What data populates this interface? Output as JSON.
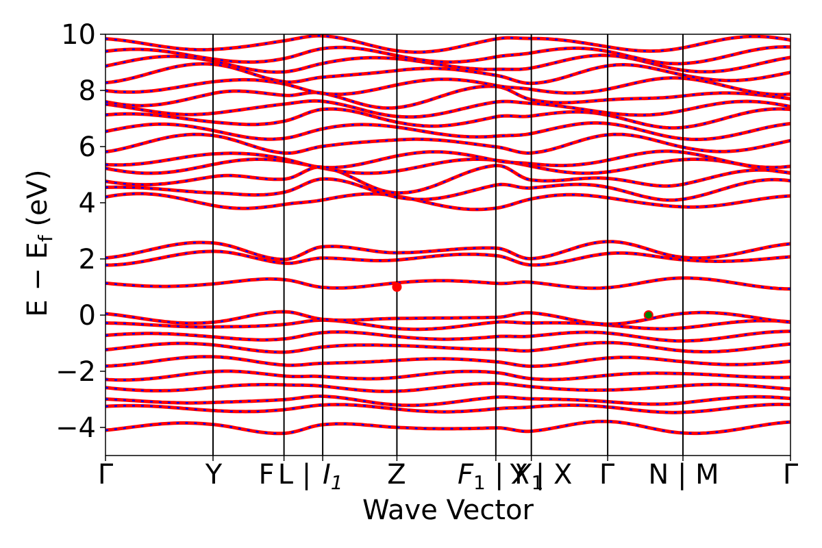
{
  "chart_data": {
    "type": "line",
    "title": "",
    "xlabel": "Wave Vector",
    "ylabel": "E − E_f (eV)",
    "ylabel_parts": {
      "main": "E − E",
      "sub": "f",
      "unit": " (eV)"
    },
    "ylim": [
      -5,
      10
    ],
    "yticks": [
      -4,
      -2,
      0,
      2,
      4,
      6,
      8,
      10
    ],
    "ytick_labels": [
      "−4",
      "−2",
      "0",
      "2",
      "4",
      "6",
      "8",
      "10"
    ],
    "grid": false,
    "legend": "none",
    "colors": {
      "band_solid": "#ff0000",
      "band_dashed": "#0000ff",
      "vbm_marker": "#008000",
      "cbm_marker": "#ff0000",
      "kpath_line": "#000000"
    },
    "kpath": [
      {
        "label": "Γ",
        "x": 0.0
      },
      {
        "label": "Y",
        "x": 1.0
      },
      {
        "label": "F | L",
        "x": 1.66
      },
      {
        "label": "I | I1",
        "x": 2.02
      },
      {
        "label": "Z",
        "x": 2.71
      },
      {
        "label": "F1 | X1",
        "x": 3.63
      },
      {
        "label": "Y | X",
        "x": 3.96
      },
      {
        "label": "Γ",
        "x": 4.67
      },
      {
        "label": "N | M",
        "x": 5.37
      },
      {
        "label": "Γ",
        "x": 6.37
      }
    ],
    "kpath_display_labels": [
      "Γ",
      "Y",
      "F",
      "L |",
      "Z",
      "X",
      "Y | X",
      "Γ",
      "N | M",
      "Γ"
    ],
    "kpath_i1_label": {
      "main": "I",
      "sub": "1",
      "sep": "| "
    },
    "kpath_f1_label": {
      "main": "F",
      "sub": "1"
    },
    "kpath_x1_label": {
      "main": "| X",
      "sub": "1"
    },
    "markers": [
      {
        "name": "CBM",
        "x": 2.71,
        "y": 1.0,
        "color": "#ff0000"
      },
      {
        "name": "VBM",
        "x": 5.05,
        "y": 0.0,
        "color": "#008000"
      }
    ],
    "bands": [
      {
        "segment": "Γ-Y",
        "values_at_nodes": [
          -4.1,
          -3.9
        ]
      },
      {
        "segment": "Γ-Y",
        "values_at_nodes": [
          -3.35,
          -3.3
        ]
      },
      {
        "segment": "Γ-Y",
        "values_at_nodes": [
          -3.1,
          -3.0
        ]
      },
      {
        "segment": "Γ-Y",
        "values_at_nodes": [
          -2.6,
          -2.55
        ]
      },
      {
        "segment": "Γ-Y",
        "values_at_nodes": [
          -2.2,
          -2.1
        ]
      },
      {
        "segment": "Γ-Y",
        "values_at_nodes": [
          -1.7,
          -1.6
        ]
      },
      {
        "segment": "Γ-Y",
        "values_at_nodes": [
          -1.2,
          -1.1
        ]
      },
      {
        "segment": "Γ-Y",
        "values_at_nodes": [
          -0.8,
          -0.7
        ]
      },
      {
        "segment": "Γ-Y",
        "values_at_nodes": [
          -0.4,
          -0.3
        ]
      },
      {
        "segment": "Γ-Y",
        "values_at_nodes": [
          0.0,
          -0.2
        ]
      },
      {
        "segment": "Γ-Y",
        "values_at_nodes": [
          1.2,
          1.05
        ]
      },
      {
        "segment": "Γ-Y",
        "values_at_nodes": [
          1.9,
          2.15
        ]
      },
      {
        "segment": "Γ-Y",
        "values_at_nodes": [
          2.1,
          2.5
        ]
      },
      {
        "segment": "Γ-Y",
        "values_at_nodes": [
          4.1,
          4.0
        ]
      },
      {
        "segment": "Γ-Y",
        "values_at_nodes": [
          4.3,
          4.6
        ]
      },
      {
        "segment": "Γ-Y",
        "values_at_nodes": [
          4.6,
          5.1
        ]
      },
      {
        "segment": "Γ-Y",
        "values_at_nodes": [
          5.3,
          5.3
        ]
      },
      {
        "segment": "Γ-Y",
        "values_at_nodes": [
          5.6,
          5.5
        ]
      },
      {
        "segment": "Γ-Y",
        "values_at_nodes": [
          6.0,
          6.2
        ]
      },
      {
        "segment": "Γ-Y",
        "values_at_nodes": [
          6.5,
          6.6
        ]
      },
      {
        "segment": "Γ-Y",
        "values_at_nodes": [
          6.9,
          7.1
        ]
      },
      {
        "segment": "Γ-Y",
        "values_at_nodes": [
          7.3,
          7.4
        ]
      },
      {
        "segment": "Γ-Y",
        "values_at_nodes": [
          7.6,
          7.9
        ]
      },
      {
        "segment": "Γ-Y",
        "values_at_nodes": [
          8.2,
          8.1
        ]
      },
      {
        "segment": "Γ-Y",
        "values_at_nodes": [
          8.5,
          8.7
        ]
      },
      {
        "segment": "Γ-Y",
        "values_at_nodes": [
          8.9,
          9.0
        ]
      },
      {
        "segment": "Γ-Y",
        "values_at_nodes": [
          9.2,
          9.3
        ]
      },
      {
        "segment": "Γ-Y",
        "values_at_nodes": [
          9.6,
          9.7
        ]
      }
    ]
  }
}
